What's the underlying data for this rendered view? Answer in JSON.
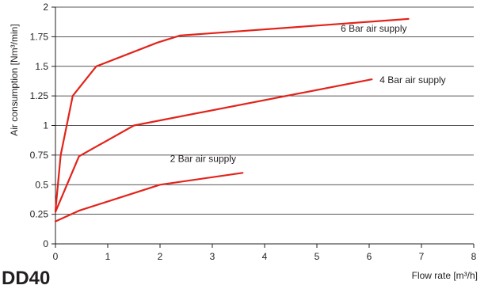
{
  "page_heading": "DD40",
  "chart_data": {
    "type": "line",
    "xlabel": "Flow rate [m³/h]",
    "ylabel": "Air consumption [Nm³/min]",
    "xlim": [
      0,
      8
    ],
    "ylim": [
      0,
      2
    ],
    "x_ticks": [
      "0",
      "1",
      "2",
      "3",
      "4",
      "5",
      "6",
      "7",
      "8"
    ],
    "y_ticks": [
      "0",
      "0.25",
      "0.5",
      "0.75",
      "1",
      "1.25",
      "1.5",
      "1.75",
      "2"
    ],
    "grid": "horizontal",
    "line_color": "#e2231a",
    "series": [
      {
        "name": "6 Bar air supply",
        "points": [
          [
            0,
            0.28
          ],
          [
            0.1,
            0.75
          ],
          [
            0.33,
            1.25
          ],
          [
            0.78,
            1.5
          ],
          [
            1.95,
            1.7
          ],
          [
            2.38,
            1.76
          ],
          [
            6.75,
            1.9
          ]
        ]
      },
      {
        "name": "4 Bar air supply",
        "points": [
          [
            0,
            0.27
          ],
          [
            0.45,
            0.74
          ],
          [
            1.5,
            1.0
          ],
          [
            6.05,
            1.39
          ]
        ]
      },
      {
        "name": "2 Bar air supply",
        "points": [
          [
            0,
            0.19
          ],
          [
            0.45,
            0.28
          ],
          [
            2.0,
            0.5
          ],
          [
            3.58,
            0.6
          ]
        ]
      }
    ]
  }
}
